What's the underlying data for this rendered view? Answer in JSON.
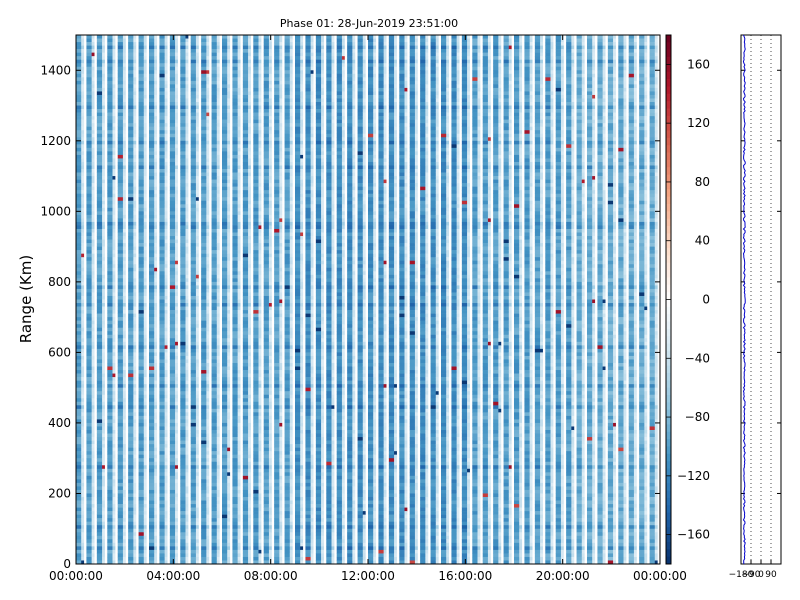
{
  "chart_data": [
    {
      "type": "heatmap",
      "title": "Phase 01: 28-Jun-2019 23:51:00",
      "xlabel": "",
      "ylabel": "Range (Km)",
      "x_ticks": [
        "00:00:00",
        "04:00:00",
        "08:00:00",
        "12:00:00",
        "16:00:00",
        "20:00:00",
        "00:00:00"
      ],
      "x_tick_hours": [
        0,
        4,
        8,
        12,
        16,
        20,
        24
      ],
      "xlim_hours": [
        0,
        24
      ],
      "ylim": [
        0,
        1500
      ],
      "y_ticks": [
        0,
        200,
        400,
        600,
        800,
        1000,
        1200,
        1400
      ],
      "colorbar": {
        "range": [
          -180,
          180
        ],
        "ticks": [
          160,
          120,
          80,
          40,
          0,
          -40,
          -80,
          -120,
          -160
        ],
        "tick_labels": [
          "160",
          "120",
          "80",
          "40",
          "0",
          "−40",
          "−80",
          "−120",
          "−160"
        ],
        "colormap": "RdBu_r",
        "colors": [
          "#08306b",
          "#2166ac",
          "#4393c3",
          "#92c5de",
          "#d1e5f0",
          "#ffffff",
          "#fddbc7",
          "#f4a582",
          "#d6604d",
          "#b2182b",
          "#67001f"
        ]
      },
      "typical_value": -100,
      "grid": false
    },
    {
      "type": "line",
      "title": "",
      "x_ticks": [
        "−180",
        "−90",
        "0",
        "90"
      ],
      "x_tick_values": [
        -180,
        -90,
        0,
        90
      ],
      "xlim": [
        -180,
        180
      ],
      "ylim": [
        0,
        1500
      ],
      "line_color": "#0000cc",
      "mean_value": -150,
      "grid": "dotted vertical"
    }
  ]
}
